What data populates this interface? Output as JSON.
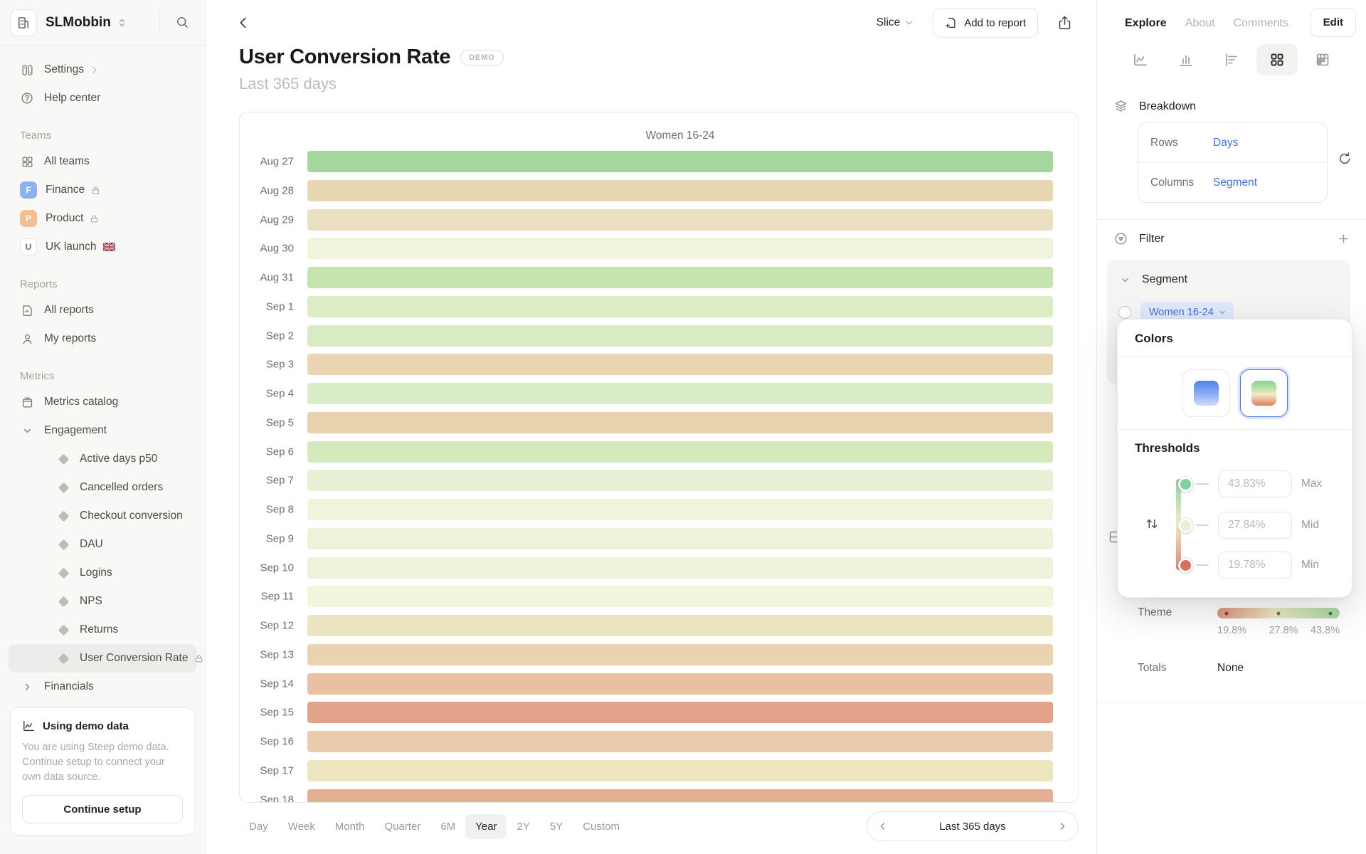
{
  "workspace": {
    "name": "SLMobbin"
  },
  "sidebar": {
    "settings": "Settings",
    "help": "Help center",
    "teams_header": "Teams",
    "all_teams": "All teams",
    "finance": "Finance",
    "finance_initial": "F",
    "product": "Product",
    "product_initial": "P",
    "uk_launch": "UK launch",
    "uk_initial": "U",
    "reports_header": "Reports",
    "all_reports": "All reports",
    "my_reports": "My reports",
    "metrics_header": "Metrics",
    "metrics_catalog": "Metrics catalog",
    "engagement": "Engagement",
    "engagement_items": [
      "Active days p50",
      "Cancelled orders",
      "Checkout conversion",
      "DAU",
      "Logins",
      "NPS",
      "Returns",
      "User Conversion Rate"
    ],
    "financials": "Financials",
    "demo_card": {
      "title": "Using demo data",
      "body": "You are using Steep demo data. Continue setup to connect your own data source.",
      "cta": "Continue setup"
    }
  },
  "topbar": {
    "slice": "Slice",
    "add_to_report": "Add to report"
  },
  "header": {
    "title": "User Conversion Rate",
    "badge": "DEMO",
    "subtitle": "Last 365 days"
  },
  "chart_data": {
    "type": "heatmap",
    "title": "User Conversion Rate",
    "period": "Last 365 days",
    "column": "Women 16-24",
    "rows_dimension": "Days",
    "columns_dimension": "Segment",
    "legend": {
      "min": "19.8%",
      "mid": "27.8%",
      "max": "43.8%"
    },
    "cells": [
      {
        "date": "Aug 27",
        "color": "#a5d69e"
      },
      {
        "date": "Aug 28",
        "color": "#e7d7b2"
      },
      {
        "date": "Aug 29",
        "color": "#eadfc1"
      },
      {
        "date": "Aug 30",
        "color": "#f1f3dc"
      },
      {
        "date": "Aug 31",
        "color": "#c6e5ae"
      },
      {
        "date": "Sep 1",
        "color": "#dcecc5"
      },
      {
        "date": "Sep 2",
        "color": "#d9ebc4"
      },
      {
        "date": "Sep 3",
        "color": "#e9d5b2"
      },
      {
        "date": "Sep 4",
        "color": "#daebc8"
      },
      {
        "date": "Sep 5",
        "color": "#e8d2ae"
      },
      {
        "date": "Sep 6",
        "color": "#d5e9bd"
      },
      {
        "date": "Sep 7",
        "color": "#e6f0d4"
      },
      {
        "date": "Sep 8",
        "color": "#f1f4dd"
      },
      {
        "date": "Sep 9",
        "color": "#eff2d9"
      },
      {
        "date": "Sep 10",
        "color": "#eff2d8"
      },
      {
        "date": "Sep 11",
        "color": "#f2f4db"
      },
      {
        "date": "Sep 12",
        "color": "#ece4c1"
      },
      {
        "date": "Sep 13",
        "color": "#ead3b1"
      },
      {
        "date": "Sep 14",
        "color": "#e9c0a1"
      },
      {
        "date": "Sep 15",
        "color": "#e1a38a"
      },
      {
        "date": "Sep 16",
        "color": "#e8ccad"
      },
      {
        "date": "Sep 17",
        "color": "#ece5bd"
      },
      {
        "date": "Sep 18",
        "color": "#e4ae92"
      }
    ]
  },
  "timebar": {
    "options": [
      "Day",
      "Week",
      "Month",
      "Quarter",
      "6M",
      "Year",
      "2Y",
      "5Y",
      "Custom"
    ],
    "selected": "Year",
    "range": "Last 365 days"
  },
  "panel": {
    "tabs": {
      "explore": "Explore",
      "about": "About",
      "comments": "Comments"
    },
    "edit": "Edit",
    "breakdown": {
      "title": "Breakdown",
      "rows_label": "Rows",
      "rows_value": "Days",
      "columns_label": "Columns",
      "columns_value": "Segment"
    },
    "filter": {
      "title": "Filter"
    },
    "segment": {
      "title": "Segment",
      "chip": "Women 16-24"
    },
    "theme": {
      "label": "Theme",
      "ticks": [
        "19.8%",
        "27.8%",
        "43.8%"
      ],
      "dot_colors": [
        "#7d4a3e",
        "#6f6f6a",
        "#3f7d4a"
      ]
    },
    "totals": {
      "label": "Totals",
      "value": "None"
    }
  },
  "popover": {
    "title": "Colors",
    "thresholds_title": "Thresholds",
    "fields": [
      {
        "placeholder": "43.83%",
        "label": "Max",
        "handle_color": "#84cf9b"
      },
      {
        "placeholder": "27.84%",
        "label": "Mid",
        "handle_color": "#efedd3"
      },
      {
        "placeholder": "19.78%",
        "label": "Min",
        "handle_color": "#dc6f5c"
      }
    ]
  }
}
